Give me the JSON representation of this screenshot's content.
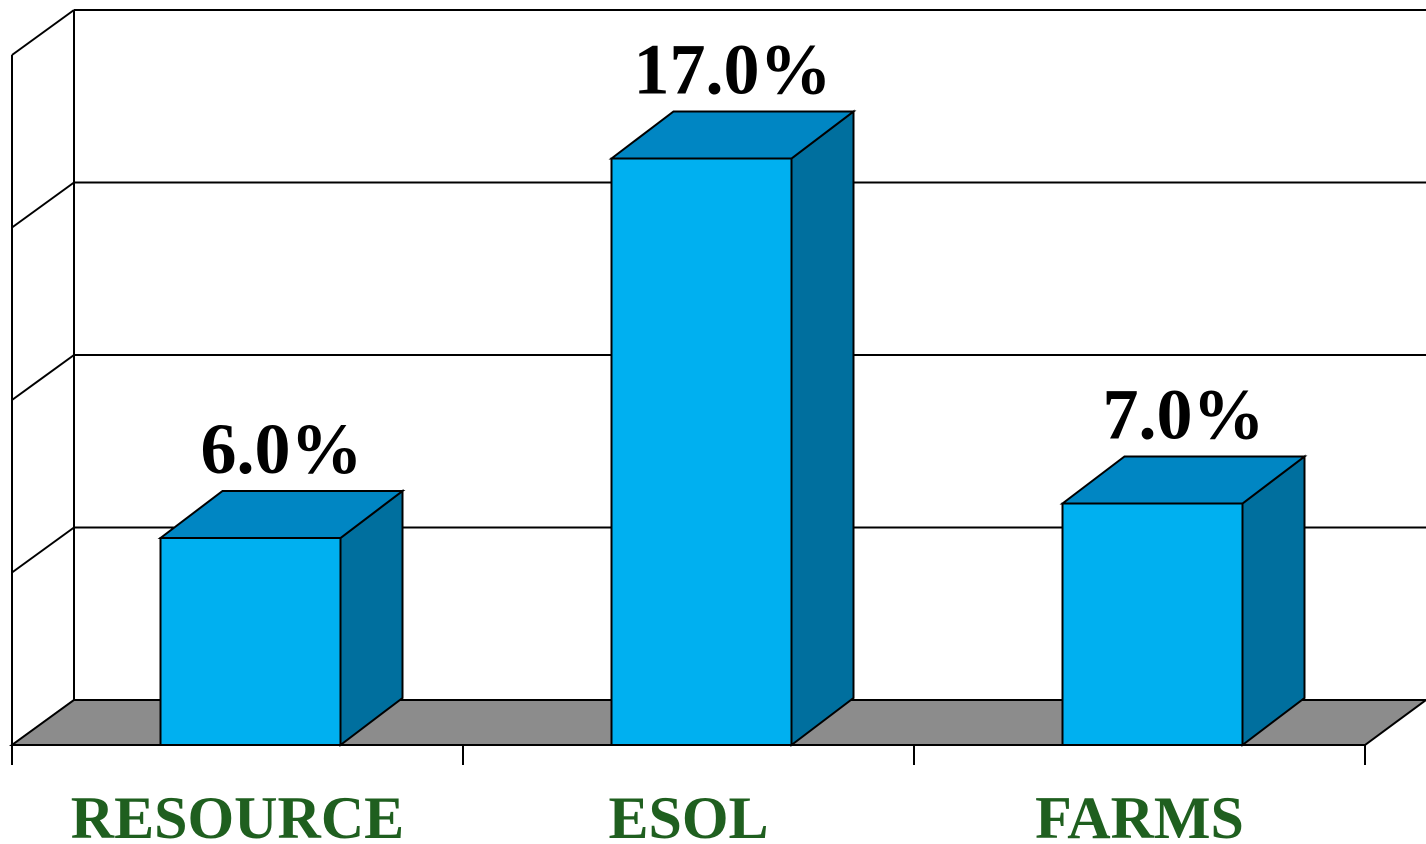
{
  "chart_data": {
    "type": "bar",
    "style": "3d-column",
    "categories": [
      "RESOURCE",
      "ESOL",
      "FARMS"
    ],
    "values": [
      6.0,
      17.0,
      7.0
    ],
    "data_labels": [
      "6.0%",
      "17.0%",
      "7.0%"
    ],
    "ylim": [
      0,
      20
    ],
    "grid": true,
    "legend": "none",
    "colors": {
      "bar_front": "#00b0f0",
      "bar_top": "#0086c3",
      "bar_side": "#006f9e",
      "floor": "#8c8c8c",
      "category_label": "#1f5f1f"
    }
  }
}
